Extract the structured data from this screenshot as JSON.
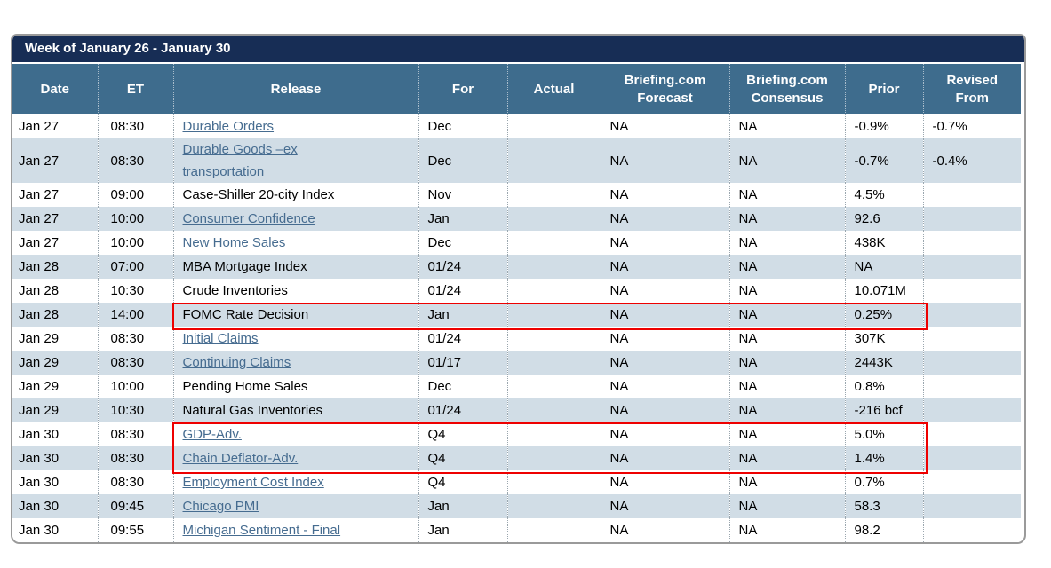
{
  "panel": {
    "title": "Week of January 26 - January 30",
    "colors": {
      "title_bar_bg": "#172d55",
      "header_bg": "#3e6c8d",
      "row_bg": "#ffffff",
      "row_alt_bg": "#d1dde6",
      "panel_border": "#9a9a9a",
      "link_color": "#466c90",
      "text_color": "#000000",
      "highlight_border": "#ee0000"
    }
  },
  "table": {
    "columns": [
      {
        "id": "date",
        "label": "Date"
      },
      {
        "id": "et",
        "label": "ET"
      },
      {
        "id": "release",
        "label": "Release"
      },
      {
        "id": "for",
        "label": "For"
      },
      {
        "id": "actual",
        "label": "Actual"
      },
      {
        "id": "forecast",
        "label": "Briefing.com Forecast"
      },
      {
        "id": "consensus",
        "label": "Briefing.com Consensus"
      },
      {
        "id": "prior",
        "label": "Prior"
      },
      {
        "id": "revised",
        "label": "Revised From"
      }
    ],
    "rows": [
      {
        "date": "Jan 27",
        "et": "08:30",
        "release": "Durable Orders",
        "is_link": true,
        "wrap": false,
        "for": "Dec",
        "actual": "",
        "forecast": "NA",
        "consensus": "NA",
        "prior": "-0.9%",
        "revised": "-0.7%"
      },
      {
        "date": "Jan 27",
        "et": "08:30",
        "release": "Durable Goods –ex transportation",
        "is_link": true,
        "wrap": true,
        "for": "Dec",
        "actual": "",
        "forecast": "NA",
        "consensus": "NA",
        "prior": "-0.7%",
        "revised": "-0.4%"
      },
      {
        "date": "Jan 27",
        "et": "09:00",
        "release": "Case-Shiller 20-city Index",
        "is_link": false,
        "wrap": false,
        "for": "Nov",
        "actual": "",
        "forecast": "NA",
        "consensus": "NA",
        "prior": "4.5%",
        "revised": ""
      },
      {
        "date": "Jan 27",
        "et": "10:00",
        "release": "Consumer Confidence",
        "is_link": true,
        "wrap": false,
        "for": "Jan",
        "actual": "",
        "forecast": "NA",
        "consensus": "NA",
        "prior": "92.6",
        "revised": ""
      },
      {
        "date": "Jan 27",
        "et": "10:00",
        "release": "New Home Sales",
        "is_link": true,
        "wrap": false,
        "for": "Dec",
        "actual": "",
        "forecast": "NA",
        "consensus": "NA",
        "prior": "438K",
        "revised": ""
      },
      {
        "date": "Jan 28",
        "et": "07:00",
        "release": "MBA Mortgage Index",
        "is_link": false,
        "wrap": false,
        "for": "01/24",
        "actual": "",
        "forecast": "NA",
        "consensus": "NA",
        "prior": "NA",
        "revised": ""
      },
      {
        "date": "Jan 28",
        "et": "10:30",
        "release": "Crude Inventories",
        "is_link": false,
        "wrap": false,
        "for": "01/24",
        "actual": "",
        "forecast": "NA",
        "consensus": "NA",
        "prior": "10.071M",
        "revised": ""
      },
      {
        "date": "Jan 28",
        "et": "14:00",
        "release": "FOMC Rate Decision",
        "is_link": false,
        "wrap": false,
        "for": "Jan",
        "actual": "",
        "forecast": "NA",
        "consensus": "NA",
        "prior": "0.25%",
        "revised": ""
      },
      {
        "date": "Jan 29",
        "et": "08:30",
        "release": "Initial Claims",
        "is_link": true,
        "wrap": false,
        "for": "01/24",
        "actual": "",
        "forecast": "NA",
        "consensus": "NA",
        "prior": "307K",
        "revised": ""
      },
      {
        "date": "Jan 29",
        "et": "08:30",
        "release": "Continuing Claims",
        "is_link": true,
        "wrap": false,
        "for": "01/17",
        "actual": "",
        "forecast": "NA",
        "consensus": "NA",
        "prior": "2443K",
        "revised": ""
      },
      {
        "date": "Jan 29",
        "et": "10:00",
        "release": "Pending Home Sales",
        "is_link": false,
        "wrap": false,
        "for": "Dec",
        "actual": "",
        "forecast": "NA",
        "consensus": "NA",
        "prior": "0.8%",
        "revised": ""
      },
      {
        "date": "Jan 29",
        "et": "10:30",
        "release": "Natural Gas Inventories",
        "is_link": false,
        "wrap": false,
        "for": "01/24",
        "actual": "",
        "forecast": "NA",
        "consensus": "NA",
        "prior": "-216 bcf",
        "revised": ""
      },
      {
        "date": "Jan 30",
        "et": "08:30",
        "release": "GDP-Adv.",
        "is_link": true,
        "wrap": false,
        "for": "Q4",
        "actual": "",
        "forecast": "NA",
        "consensus": "NA",
        "prior": "5.0%",
        "revised": ""
      },
      {
        "date": "Jan 30",
        "et": "08:30",
        "release": "Chain Deflator-Adv.",
        "is_link": true,
        "wrap": false,
        "for": "Q4",
        "actual": "",
        "forecast": "NA",
        "consensus": "NA",
        "prior": "1.4%",
        "revised": ""
      },
      {
        "date": "Jan 30",
        "et": "08:30",
        "release": "Employment Cost Index",
        "is_link": true,
        "wrap": false,
        "for": "Q4",
        "actual": "",
        "forecast": "NA",
        "consensus": "NA",
        "prior": "0.7%",
        "revised": ""
      },
      {
        "date": "Jan 30",
        "et": "09:45",
        "release": "Chicago PMI",
        "is_link": true,
        "wrap": false,
        "for": "Jan",
        "actual": "",
        "forecast": "NA",
        "consensus": "NA",
        "prior": "58.3",
        "revised": ""
      },
      {
        "date": "Jan 30",
        "et": "09:55",
        "release": "Michigan Sentiment - Final",
        "is_link": true,
        "wrap": false,
        "for": "Jan",
        "actual": "",
        "forecast": "NA",
        "consensus": "NA",
        "prior": "98.2",
        "revised": ""
      }
    ],
    "highlights": [
      {
        "row_start": 7,
        "row_end": 7,
        "col_start": 2,
        "col_end": 7
      },
      {
        "row_start": 12,
        "row_end": 13,
        "col_start": 2,
        "col_end": 7
      }
    ]
  }
}
